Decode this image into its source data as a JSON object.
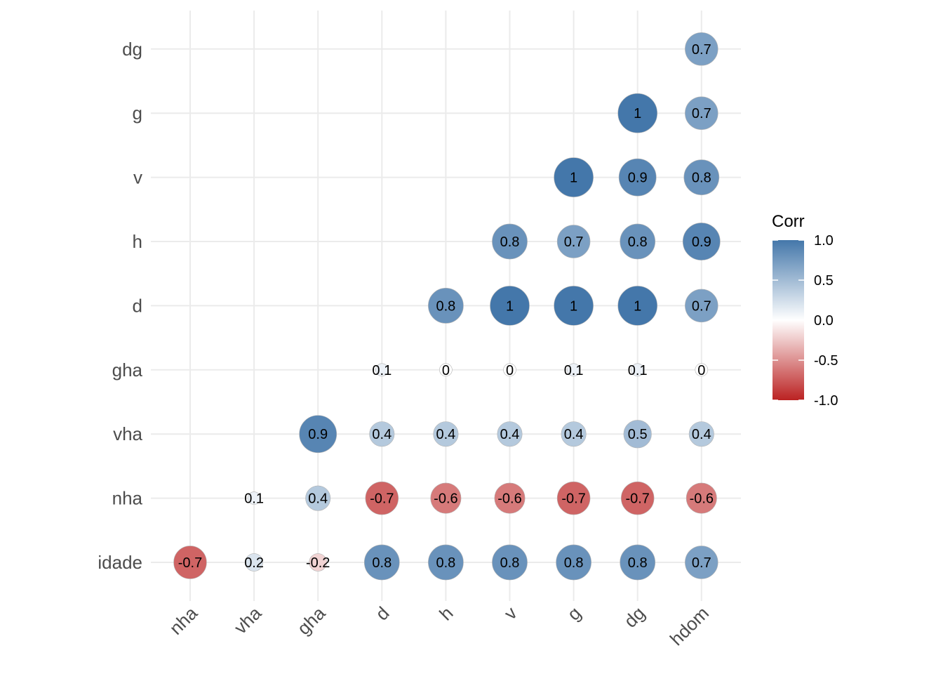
{
  "chart_data": {
    "type": "heatmap",
    "x_labels": [
      "nha",
      "vha",
      "gha",
      "d",
      "h",
      "v",
      "g",
      "dg",
      "hdom"
    ],
    "y_labels": [
      "idade",
      "nha",
      "vha",
      "gha",
      "d",
      "h",
      "v",
      "g",
      "dg"
    ],
    "cells": [
      {
        "row": "dg",
        "col": "hdom",
        "value": 0.7,
        "label": "0.7"
      },
      {
        "row": "g",
        "col": "dg",
        "value": 1.0,
        "label": "1"
      },
      {
        "row": "g",
        "col": "hdom",
        "value": 0.7,
        "label": "0.7"
      },
      {
        "row": "v",
        "col": "g",
        "value": 1.0,
        "label": "1"
      },
      {
        "row": "v",
        "col": "dg",
        "value": 0.9,
        "label": "0.9"
      },
      {
        "row": "v",
        "col": "hdom",
        "value": 0.8,
        "label": "0.8"
      },
      {
        "row": "h",
        "col": "v",
        "value": 0.8,
        "label": "0.8"
      },
      {
        "row": "h",
        "col": "g",
        "value": 0.7,
        "label": "0.7"
      },
      {
        "row": "h",
        "col": "dg",
        "value": 0.8,
        "label": "0.8"
      },
      {
        "row": "h",
        "col": "hdom",
        "value": 0.9,
        "label": "0.9"
      },
      {
        "row": "d",
        "col": "h",
        "value": 0.8,
        "label": "0.8"
      },
      {
        "row": "d",
        "col": "v",
        "value": 1.0,
        "label": "1"
      },
      {
        "row": "d",
        "col": "g",
        "value": 1.0,
        "label": "1"
      },
      {
        "row": "d",
        "col": "dg",
        "value": 1.0,
        "label": "1"
      },
      {
        "row": "d",
        "col": "hdom",
        "value": 0.7,
        "label": "0.7"
      },
      {
        "row": "gha",
        "col": "d",
        "value": 0.1,
        "label": "0.1"
      },
      {
        "row": "gha",
        "col": "h",
        "value": 0.0,
        "label": "0"
      },
      {
        "row": "gha",
        "col": "v",
        "value": 0.0,
        "label": "0"
      },
      {
        "row": "gha",
        "col": "g",
        "value": 0.1,
        "label": "0.1"
      },
      {
        "row": "gha",
        "col": "dg",
        "value": 0.1,
        "label": "0.1"
      },
      {
        "row": "gha",
        "col": "hdom",
        "value": 0.0,
        "label": "0"
      },
      {
        "row": "vha",
        "col": "gha",
        "value": 0.9,
        "label": "0.9"
      },
      {
        "row": "vha",
        "col": "d",
        "value": 0.4,
        "label": "0.4"
      },
      {
        "row": "vha",
        "col": "h",
        "value": 0.4,
        "label": "0.4"
      },
      {
        "row": "vha",
        "col": "v",
        "value": 0.4,
        "label": "0.4"
      },
      {
        "row": "vha",
        "col": "g",
        "value": 0.4,
        "label": "0.4"
      },
      {
        "row": "vha",
        "col": "dg",
        "value": 0.5,
        "label": "0.5"
      },
      {
        "row": "vha",
        "col": "hdom",
        "value": 0.4,
        "label": "0.4"
      },
      {
        "row": "nha",
        "col": "vha",
        "value": 0.1,
        "label": "0.1"
      },
      {
        "row": "nha",
        "col": "gha",
        "value": 0.4,
        "label": "0.4"
      },
      {
        "row": "nha",
        "col": "d",
        "value": -0.7,
        "label": "-0.7"
      },
      {
        "row": "nha",
        "col": "h",
        "value": -0.6,
        "label": "-0.6"
      },
      {
        "row": "nha",
        "col": "v",
        "value": -0.6,
        "label": "-0.6"
      },
      {
        "row": "nha",
        "col": "g",
        "value": -0.7,
        "label": "-0.7"
      },
      {
        "row": "nha",
        "col": "dg",
        "value": -0.7,
        "label": "-0.7"
      },
      {
        "row": "nha",
        "col": "hdom",
        "value": -0.6,
        "label": "-0.6"
      },
      {
        "row": "idade",
        "col": "nha",
        "value": -0.7,
        "label": "-0.7"
      },
      {
        "row": "idade",
        "col": "vha",
        "value": 0.2,
        "label": "0.2"
      },
      {
        "row": "idade",
        "col": "gha",
        "value": -0.2,
        "label": "-0.2"
      },
      {
        "row": "idade",
        "col": "d",
        "value": 0.8,
        "label": "0.8"
      },
      {
        "row": "idade",
        "col": "h",
        "value": 0.8,
        "label": "0.8"
      },
      {
        "row": "idade",
        "col": "v",
        "value": 0.8,
        "label": "0.8"
      },
      {
        "row": "idade",
        "col": "g",
        "value": 0.8,
        "label": "0.8"
      },
      {
        "row": "idade",
        "col": "dg",
        "value": 0.8,
        "label": "0.8"
      },
      {
        "row": "idade",
        "col": "hdom",
        "value": 0.7,
        "label": "0.7"
      }
    ],
    "legend": {
      "title": "Corr",
      "ticks": [
        {
          "value": 1.0,
          "label": "1.0"
        },
        {
          "value": 0.5,
          "label": "0.5"
        },
        {
          "value": 0.0,
          "label": "0.0"
        },
        {
          "value": -0.5,
          "label": "-0.5"
        },
        {
          "value": -1.0,
          "label": "-1.0"
        }
      ],
      "placement": "right"
    },
    "colors": {
      "high": "#4477aa",
      "mid": "#ffffff",
      "low": "#bb2222"
    },
    "value_range": [
      -1,
      1
    ],
    "grid": true
  }
}
